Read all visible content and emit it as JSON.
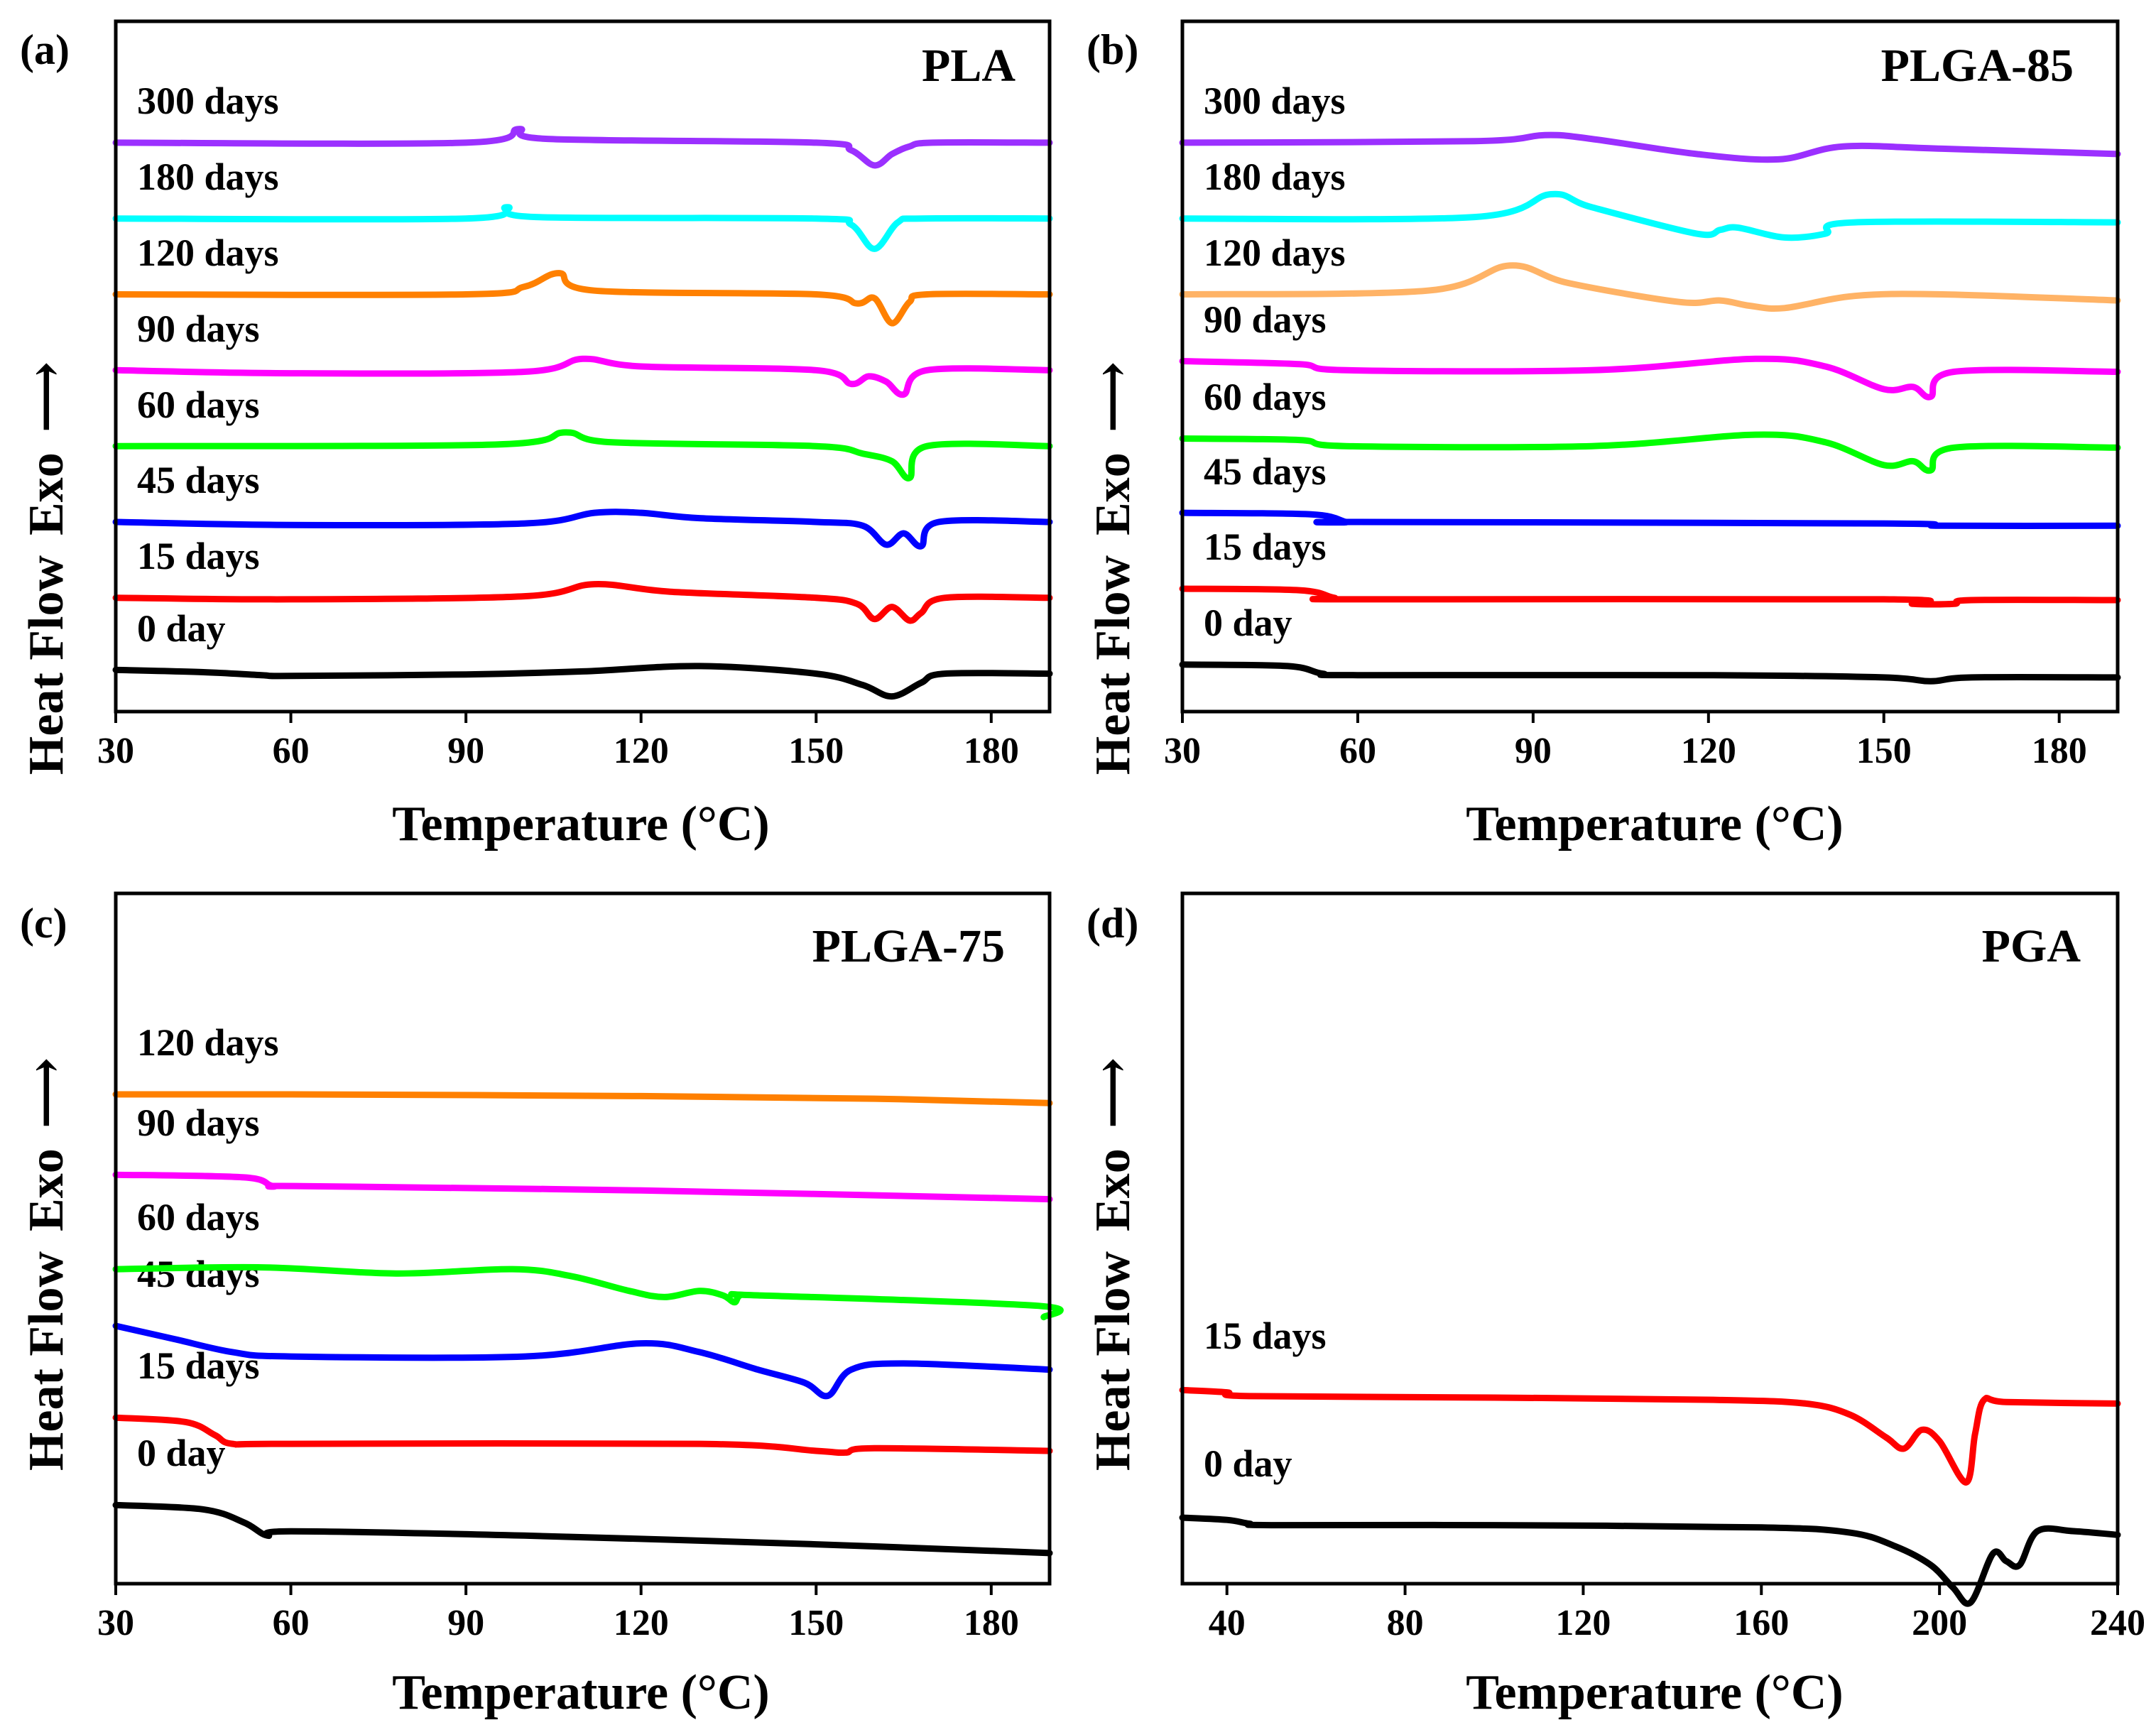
{
  "figure": {
    "x_axis_label": "Temperature (°C)",
    "y_axis_label": "Heat Flow",
    "exo_label": "Exo",
    "exo_arrow": "⟶"
  },
  "chart_data": [
    {
      "id": "a",
      "letter": "(a)",
      "title": "PLA",
      "type": "line",
      "xlabel": "Temperature (°C)",
      "ylabel": "Heat Flow  Exo ⟶",
      "xlim": [
        30,
        190
      ],
      "xticks": [
        30,
        60,
        90,
        120,
        150,
        180
      ],
      "ylim": [
        -0.5,
        8.6
      ],
      "series": [
        {
          "name": "0 day",
          "color": "#000000",
          "offset": 0,
          "x": [
            30,
            45,
            55,
            60,
            90,
            110,
            130,
            150,
            158,
            163,
            168,
            172,
            190
          ],
          "y": [
            0.05,
            0.02,
            -0.02,
            -0.03,
            -0.01,
            0.03,
            0.1,
            0.0,
            -0.15,
            -0.3,
            -0.12,
            0.0,
            0.0
          ]
        },
        {
          "name": "15 days",
          "color": "#ff0000",
          "offset": 1,
          "x": [
            30,
            60,
            100,
            112,
            125,
            150,
            157,
            160,
            163,
            166,
            168,
            172,
            190
          ],
          "y": [
            0.0,
            -0.02,
            0.02,
            0.18,
            0.08,
            0.0,
            -0.08,
            -0.28,
            -0.12,
            -0.3,
            -0.2,
            0.0,
            0.0
          ]
        },
        {
          "name": "45 days",
          "color": "#0000ff",
          "offset": 2,
          "x": [
            30,
            60,
            100,
            112,
            120,
            130,
            150,
            158,
            162,
            165,
            168,
            171,
            190
          ],
          "y": [
            0.0,
            -0.04,
            -0.02,
            0.12,
            0.12,
            0.05,
            0.0,
            -0.05,
            -0.3,
            -0.15,
            -0.32,
            0.0,
            0.0
          ]
        },
        {
          "name": "60 days",
          "color": "#00ff00",
          "offset": 3,
          "x": [
            30,
            95,
            107,
            115,
            150,
            158,
            163,
            166,
            169,
            190
          ],
          "y": [
            0.0,
            0.02,
            0.18,
            0.05,
            0.0,
            -0.1,
            -0.2,
            -0.42,
            0.0,
            0.0
          ]
        },
        {
          "name": "90 days",
          "color": "#ff00ff",
          "offset": 4,
          "x": [
            30,
            60,
            100,
            110,
            120,
            150,
            156,
            159,
            162,
            165,
            169,
            190
          ],
          "y": [
            0.0,
            -0.04,
            -0.02,
            0.15,
            0.05,
            0.0,
            -0.18,
            -0.08,
            -0.15,
            -0.32,
            0.0,
            0.0
          ]
        },
        {
          "name": "120 days",
          "color": "#ff8000",
          "offset": 5,
          "x": [
            30,
            90,
            100,
            106,
            112,
            150,
            157,
            160,
            163,
            166,
            169,
            190
          ],
          "y": [
            0.0,
            0.0,
            0.1,
            0.28,
            0.05,
            0.0,
            -0.12,
            -0.05,
            -0.38,
            -0.1,
            0.0,
            0.0
          ]
        },
        {
          "name": "180 days",
          "color": "#00ffff",
          "offset": 6,
          "x": [
            30,
            90,
            97,
            102,
            150,
            156,
            160,
            164,
            168,
            190
          ],
          "y": [
            0.0,
            0.0,
            0.15,
            0.02,
            0.0,
            -0.08,
            -0.4,
            -0.05,
            0.0,
            0.0
          ]
        },
        {
          "name": "300 days",
          "color": "#9b30ff",
          "offset": 7,
          "x": [
            30,
            90,
            99,
            104,
            150,
            156,
            160,
            163,
            166,
            170,
            190
          ],
          "y": [
            0.0,
            0.0,
            0.18,
            0.05,
            0.0,
            -0.1,
            -0.3,
            -0.15,
            -0.05,
            0.0,
            0.0
          ]
        }
      ]
    },
    {
      "id": "b",
      "letter": "(b)",
      "title": "PLGA-85",
      "type": "line",
      "xlabel": "Temperature (°C)",
      "ylabel": "Heat Flow  Exo ⟶",
      "xlim": [
        30,
        190
      ],
      "xticks": [
        30,
        60,
        90,
        120,
        150,
        180
      ],
      "ylim": [
        -0.5,
        8.6
      ],
      "series": [
        {
          "name": "0 day",
          "color": "#000000",
          "offset": 0,
          "x": [
            30,
            48,
            54,
            60,
            120,
            150,
            158,
            165,
            190
          ],
          "y": [
            0.12,
            0.1,
            0.0,
            -0.02,
            -0.02,
            -0.05,
            -0.1,
            -0.05,
            -0.05
          ]
        },
        {
          "name": "15 days",
          "color": "#ff0000",
          "offset": 1,
          "x": [
            30,
            50,
            56,
            60,
            150,
            155,
            162,
            165,
            190
          ],
          "y": [
            0.12,
            0.1,
            0.0,
            -0.02,
            -0.02,
            -0.08,
            -0.08,
            -0.03,
            -0.03
          ]
        },
        {
          "name": "45 days",
          "color": "#0000ff",
          "offset": 2,
          "x": [
            30,
            52,
            58,
            60,
            150,
            160,
            190
          ],
          "y": [
            0.12,
            0.1,
            0.0,
            0.0,
            -0.02,
            -0.05,
            -0.05
          ]
        },
        {
          "name": "60 days",
          "color": "#00ff00",
          "offset": 3,
          "x": [
            30,
            50,
            58,
            100,
            128,
            140,
            150,
            155,
            158,
            162,
            190
          ],
          "y": [
            0.1,
            0.08,
            0.0,
            0.0,
            0.15,
            0.05,
            -0.25,
            -0.2,
            -0.32,
            -0.02,
            -0.02
          ]
        },
        {
          "name": "90 days",
          "color": "#ff00ff",
          "offset": 4,
          "x": [
            30,
            50,
            58,
            100,
            128,
            140,
            150,
            155,
            158,
            162,
            190
          ],
          "y": [
            0.12,
            0.08,
            0.0,
            0.0,
            0.15,
            0.05,
            -0.25,
            -0.22,
            -0.35,
            -0.02,
            -0.02
          ]
        },
        {
          "name": "120 days",
          "color": "#ffb366",
          "offset": 5,
          "x": [
            30,
            72,
            86,
            96,
            115,
            122,
            127,
            133,
            145,
            160,
            190
          ],
          "y": [
            0.0,
            0.05,
            0.38,
            0.15,
            -0.1,
            -0.08,
            -0.15,
            -0.18,
            -0.02,
            0.0,
            -0.08
          ]
        },
        {
          "name": "180 days",
          "color": "#00ffff",
          "offset": 6,
          "x": [
            30,
            80,
            93,
            100,
            118,
            122,
            125,
            133,
            140,
            145,
            190
          ],
          "y": [
            0.0,
            0.02,
            0.32,
            0.15,
            -0.2,
            -0.15,
            -0.12,
            -0.25,
            -0.2,
            -0.05,
            -0.05
          ]
        },
        {
          "name": "300 days",
          "color": "#9b30ff",
          "offset": 7,
          "x": [
            30,
            80,
            92,
            100,
            118,
            132,
            143,
            160,
            190
          ],
          "y": [
            0.0,
            0.02,
            0.1,
            0.05,
            -0.15,
            -0.22,
            -0.05,
            -0.08,
            -0.15
          ]
        }
      ]
    },
    {
      "id": "c",
      "letter": "(c)",
      "title": "PLGA-75",
      "type": "line",
      "xlabel": "Temperature (°C)",
      "ylabel": "Heat Flow  Exo ⟶",
      "xlim": [
        30,
        190
      ],
      "xticks": [
        30,
        60,
        90,
        120,
        150,
        180
      ],
      "ylim": [
        -0.6,
        7.3
      ],
      "series": [
        {
          "name": "0 day",
          "color": "#000000",
          "offset": 0,
          "x": [
            30,
            45,
            52,
            56,
            60,
            100,
            150,
            190
          ],
          "y": [
            0.3,
            0.25,
            0.1,
            -0.05,
            0.0,
            -0.05,
            -0.15,
            -0.25
          ]
        },
        {
          "name": "15 days",
          "color": "#ff0000",
          "offset": 1,
          "x": [
            30,
            42,
            47,
            50,
            60,
            130,
            150,
            155,
            160,
            190
          ],
          "y": [
            0.3,
            0.25,
            0.1,
            0.0,
            0.0,
            0.0,
            -0.08,
            -0.1,
            -0.05,
            -0.08
          ]
        },
        {
          "name": "45 days",
          "color": "#0000ff",
          "offset": 2,
          "x": [
            30,
            40,
            50,
            60,
            100,
            120,
            130,
            140,
            148,
            152,
            156,
            165,
            190
          ],
          "y": [
            0.35,
            0.2,
            0.05,
            0.0,
            0.0,
            0.15,
            0.05,
            -0.15,
            -0.3,
            -0.45,
            -0.15,
            -0.08,
            -0.15
          ]
        },
        {
          "name": "60 days",
          "color": "#00ff00",
          "offset": 3,
          "x": [
            30,
            55,
            78,
            98,
            108,
            118,
            124,
            130,
            134,
            136,
            137,
            140,
            188,
            189
          ],
          "y": [
            0.0,
            0.02,
            -0.05,
            0.0,
            -0.08,
            -0.25,
            -0.32,
            -0.25,
            -0.3,
            -0.38,
            -0.3,
            -0.3,
            -0.42,
            -0.55
          ]
        },
        {
          "name": "90 days",
          "color": "#ff00ff",
          "offset": 4,
          "x": [
            30,
            52,
            57,
            62,
            120,
            190
          ],
          "y": [
            0.08,
            0.05,
            -0.05,
            -0.05,
            -0.1,
            -0.2
          ]
        },
        {
          "name": "120 days",
          "color": "#ff8000",
          "offset": 5,
          "x": [
            30,
            60,
            120,
            160,
            190
          ],
          "y": [
            0.0,
            0.0,
            -0.02,
            -0.05,
            -0.1
          ]
        }
      ]
    },
    {
      "id": "d",
      "letter": "(d)",
      "title": "PGA",
      "type": "line",
      "xlabel": "Temperature (°C)",
      "ylabel": "Heat Flow  Exo ⟶",
      "xlim": [
        30,
        240
      ],
      "xticks": [
        40,
        80,
        120,
        160,
        200,
        240
      ],
      "ylim": [
        -0.8,
        8.4
      ],
      "series": [
        {
          "name": "0 day",
          "color": "#000000",
          "offset": 0,
          "x": [
            30,
            40,
            45,
            50,
            100,
            160,
            180,
            190,
            198,
            203,
            207,
            212,
            215,
            218,
            222,
            230,
            240
          ],
          "y": [
            0.08,
            0.05,
            0.0,
            -0.02,
            -0.02,
            -0.05,
            -0.12,
            -0.3,
            -0.55,
            -0.85,
            -1.05,
            -0.4,
            -0.5,
            -0.55,
            -0.1,
            -0.1,
            -0.15
          ]
        },
        {
          "name": "15 days",
          "color": "#ff0000",
          "offset": 1.7,
          "x": [
            30,
            40,
            45,
            100,
            150,
            170,
            180,
            188,
            192,
            196,
            200,
            206,
            208,
            210,
            215,
            240
          ],
          "y": [
            0.08,
            0.05,
            0.0,
            -0.02,
            -0.05,
            -0.1,
            -0.25,
            -0.55,
            -0.7,
            -0.45,
            -0.6,
            -1.15,
            -0.5,
            -0.05,
            -0.08,
            -0.1
          ]
        }
      ]
    }
  ]
}
